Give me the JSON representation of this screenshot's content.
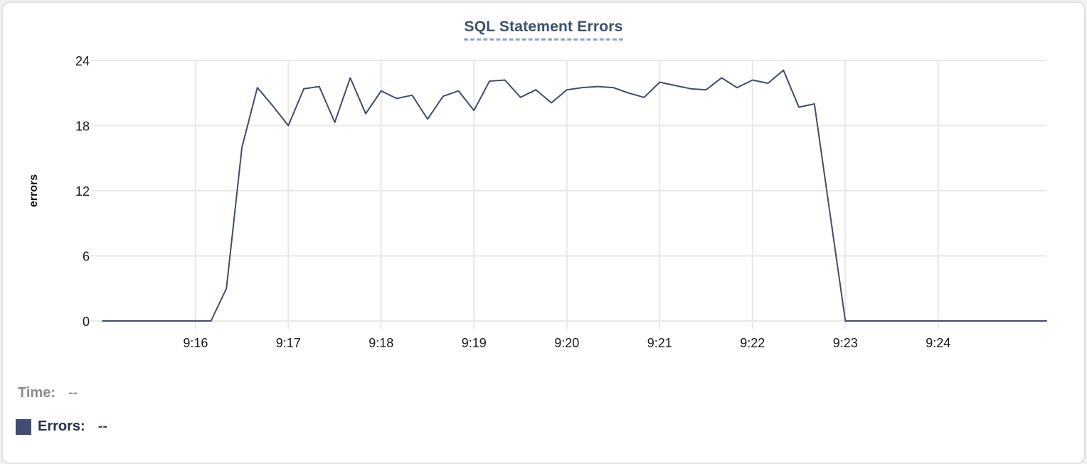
{
  "card": {
    "background": "#ffffff",
    "border_color": "#e2e2e2"
  },
  "chart_data": {
    "type": "line",
    "title": "SQL Statement Errors",
    "xlabel": "",
    "ylabel": "errors",
    "x_ticks": [
      "9:16",
      "9:17",
      "9:18",
      "9:19",
      "9:20",
      "9:21",
      "9:22",
      "9:23",
      "9:24"
    ],
    "y_ticks": [
      0,
      6,
      12,
      18,
      24
    ],
    "ylim": [
      0,
      24
    ],
    "xlim_time": [
      "9:14:58",
      "9:25:10"
    ],
    "grid": true,
    "legend_position": "bottom-left",
    "series": [
      {
        "name": "Errors",
        "color": "#3f4d6e",
        "sample_interval_seconds": 10,
        "times": [
          "9:15:00",
          "9:15:10",
          "9:15:20",
          "9:15:30",
          "9:15:40",
          "9:15:50",
          "9:16:00",
          "9:16:10",
          "9:16:20",
          "9:16:30",
          "9:16:40",
          "9:16:50",
          "9:17:00",
          "9:17:10",
          "9:17:20",
          "9:17:30",
          "9:17:40",
          "9:17:50",
          "9:18:00",
          "9:18:10",
          "9:18:20",
          "9:18:30",
          "9:18:40",
          "9:18:50",
          "9:19:00",
          "9:19:10",
          "9:19:20",
          "9:19:30",
          "9:19:40",
          "9:19:50",
          "9:20:00",
          "9:20:10",
          "9:20:20",
          "9:20:30",
          "9:20:40",
          "9:20:50",
          "9:21:00",
          "9:21:10",
          "9:21:20",
          "9:21:30",
          "9:21:40",
          "9:21:50",
          "9:22:00",
          "9:22:10",
          "9:22:20",
          "9:22:30",
          "9:22:40",
          "9:22:50",
          "9:23:00",
          "9:23:10",
          "9:23:20",
          "9:23:30",
          "9:23:40",
          "9:23:50",
          "9:24:00",
          "9:24:10",
          "9:24:20",
          "9:24:30",
          "9:24:40",
          "9:24:50",
          "9:25:00",
          "9:25:10"
        ],
        "values": [
          0,
          0,
          0,
          0,
          0,
          0,
          0,
          0,
          3,
          16,
          21.5,
          19.8,
          18,
          21.4,
          21.6,
          18.3,
          22.4,
          19.1,
          21.2,
          20.5,
          20.8,
          18.6,
          20.7,
          21.2,
          19.4,
          22.1,
          22.2,
          20.6,
          21.3,
          20.1,
          21.3,
          21.5,
          21.6,
          21.5,
          21.0,
          20.6,
          22.0,
          21.7,
          21.4,
          21.3,
          22.4,
          21.5,
          22.2,
          21.9,
          23.1,
          19.7,
          20.0,
          10,
          0,
          0,
          0,
          0,
          0,
          0,
          0,
          0,
          0,
          0,
          0,
          0,
          0,
          0
        ]
      }
    ]
  },
  "legend": {
    "time_label": "Time:",
    "time_value": "--",
    "errors_label": "Errors:",
    "errors_value": "--"
  },
  "colors": {
    "line": "#3f4d6e",
    "swatch": "#3f4d6e",
    "title_text": "#3b5172",
    "title_underline": "#93a2c2",
    "grid": "#e8e8e8",
    "tick_text": "#191919",
    "time_label_text": "#8b8b8b",
    "errors_label_text": "#263250"
  }
}
